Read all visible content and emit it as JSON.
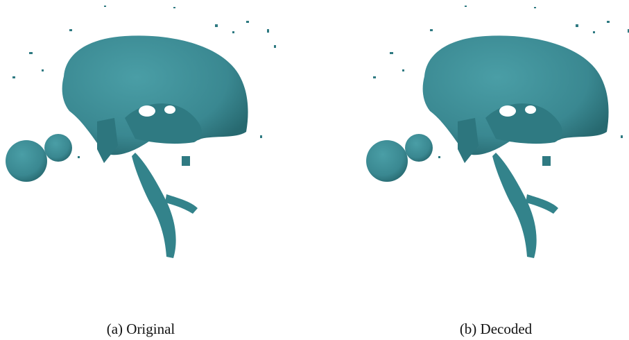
{
  "figure": {
    "panels": [
      {
        "caption": "(a) Original"
      },
      {
        "caption": "(b) Decoded"
      }
    ]
  }
}
